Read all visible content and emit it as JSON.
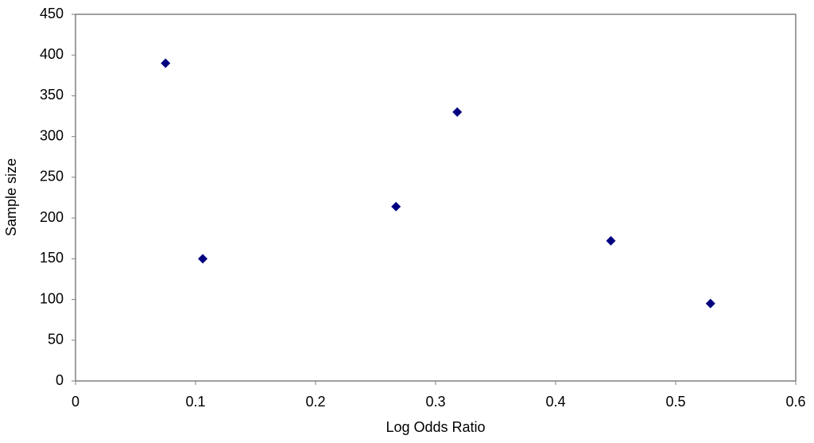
{
  "chart_data": {
    "type": "scatter",
    "x_label": "Log Odds Ratio",
    "y_label": "Sample size",
    "series": [
      {
        "color": "#000080",
        "x": [
          0.075,
          0.106,
          0.267,
          0.318,
          0.446,
          0.529
        ],
        "values": [
          390,
          150,
          214,
          330,
          172,
          95
        ]
      }
    ],
    "xlim": [
      0,
      0.6
    ],
    "xticks": [
      0,
      0.1,
      0.2,
      0.3,
      0.4,
      0.5,
      0.6
    ],
    "ylim": [
      0,
      450
    ],
    "yticks": [
      0,
      50,
      100,
      150,
      200,
      250,
      300,
      350,
      400,
      450
    ],
    "grid": false
  }
}
